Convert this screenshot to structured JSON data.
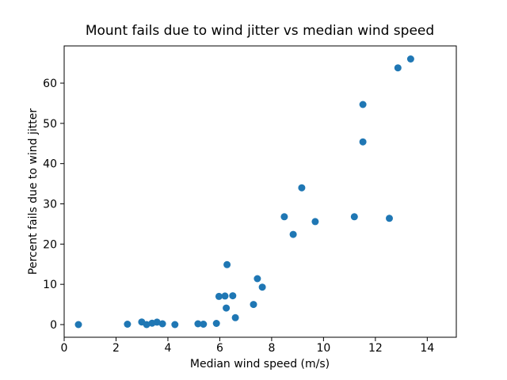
{
  "chart_data": {
    "type": "scatter",
    "title": "Mount fails due to wind jitter vs median wind speed",
    "xlabel": "Median wind speed (m/s)",
    "ylabel": "Percent fails due to wind jitter",
    "xlim": [
      0,
      15.12
    ],
    "ylim": [
      -3.15,
      69.25
    ],
    "x_ticks": [
      0,
      2,
      4,
      6,
      8,
      10,
      12,
      14
    ],
    "y_ticks": [
      0,
      10,
      20,
      30,
      40,
      50,
      60
    ],
    "legend": null,
    "grid": false,
    "marker_color": "#1f77b4",
    "points": [
      [
        0.55,
        0.0
      ],
      [
        2.44,
        0.1
      ],
      [
        2.99,
        0.65
      ],
      [
        3.18,
        0.0
      ],
      [
        3.39,
        0.35
      ],
      [
        3.58,
        0.6
      ],
      [
        3.79,
        0.2
      ],
      [
        4.27,
        0.0
      ],
      [
        5.16,
        0.2
      ],
      [
        5.37,
        0.1
      ],
      [
        5.87,
        0.3
      ],
      [
        5.97,
        7.0
      ],
      [
        6.2,
        7.1
      ],
      [
        6.5,
        7.15
      ],
      [
        6.28,
        14.9
      ],
      [
        6.25,
        4.1
      ],
      [
        6.6,
        1.7
      ],
      [
        7.3,
        5.0
      ],
      [
        7.45,
        11.4
      ],
      [
        7.64,
        9.3
      ],
      [
        8.49,
        26.8
      ],
      [
        8.83,
        22.4
      ],
      [
        9.16,
        34.0
      ],
      [
        9.68,
        25.6
      ],
      [
        11.19,
        26.8
      ],
      [
        11.52,
        45.4
      ],
      [
        11.52,
        54.7
      ],
      [
        12.54,
        26.4
      ],
      [
        12.87,
        63.8
      ],
      [
        13.36,
        66.0
      ]
    ]
  }
}
